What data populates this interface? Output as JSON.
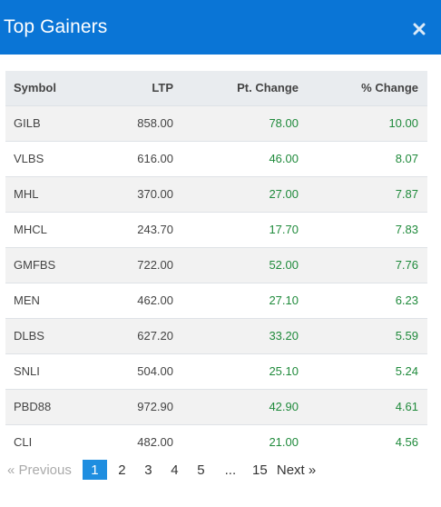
{
  "modal": {
    "title": "Top Gainers",
    "close_icon": "close-icon"
  },
  "table": {
    "headers": {
      "symbol": "Symbol",
      "ltp": "LTP",
      "pt_change": "Pt. Change",
      "pct_change": "% Change"
    },
    "rows": [
      {
        "symbol": "GILB",
        "ltp": "858.00",
        "pt_change": "78.00",
        "pct_change": "10.00"
      },
      {
        "symbol": "VLBS",
        "ltp": "616.00",
        "pt_change": "46.00",
        "pct_change": "8.07"
      },
      {
        "symbol": "MHL",
        "ltp": "370.00",
        "pt_change": "27.00",
        "pct_change": "7.87"
      },
      {
        "symbol": "MHCL",
        "ltp": "243.70",
        "pt_change": "17.70",
        "pct_change": "7.83"
      },
      {
        "symbol": "GMFBS",
        "ltp": "722.00",
        "pt_change": "52.00",
        "pct_change": "7.76"
      },
      {
        "symbol": "MEN",
        "ltp": "462.00",
        "pt_change": "27.10",
        "pct_change": "6.23"
      },
      {
        "symbol": "DLBS",
        "ltp": "627.20",
        "pt_change": "33.20",
        "pct_change": "5.59"
      },
      {
        "symbol": "SNLI",
        "ltp": "504.00",
        "pt_change": "25.10",
        "pct_change": "5.24"
      },
      {
        "symbol": "PBD88",
        "ltp": "972.90",
        "pt_change": "42.90",
        "pct_change": "4.61"
      },
      {
        "symbol": "CLI",
        "ltp": "482.00",
        "pt_change": "21.00",
        "pct_change": "4.56"
      }
    ]
  },
  "pagination": {
    "previous": "« Previous",
    "pages": [
      "1",
      "2",
      "3",
      "4",
      "5"
    ],
    "ellipsis": "...",
    "last": "15",
    "next": "Next »",
    "current": "1"
  },
  "colors": {
    "header_bg": "#0a75d6",
    "positive": "#1f8a3b",
    "active_page": "#1f8ee0"
  }
}
